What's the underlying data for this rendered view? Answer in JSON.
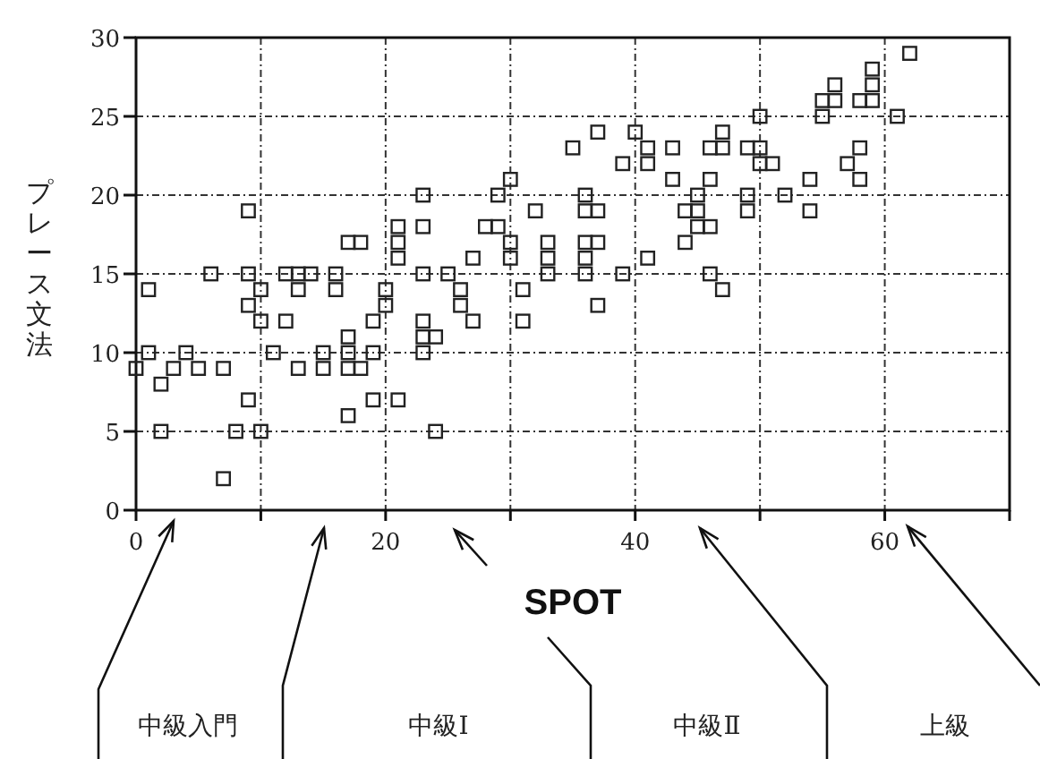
{
  "chart_data": {
    "type": "scatter",
    "xlabel": "SPOT",
    "ylabel": "プレース文法",
    "marker": "square",
    "grid": true,
    "xlim": [
      0,
      70
    ],
    "ylim": [
      0,
      30
    ],
    "xticks": [
      0,
      {
        "value": 10,
        "label": null
      },
      20,
      {
        "value": 30,
        "label": null
      },
      40,
      {
        "value": 50,
        "label": null
      },
      60,
      {
        "value": 70,
        "label": null
      }
    ],
    "yticks": [
      0,
      5,
      10,
      15,
      20,
      25,
      30
    ],
    "annotations": [
      "中級入門",
      "中級Ⅰ",
      "中級Ⅱ",
      "上級"
    ],
    "series": [
      {
        "color": "#222222",
        "x": [
          0,
          1,
          1,
          2,
          2,
          3,
          4,
          5,
          7,
          6,
          7,
          8,
          9,
          9,
          9,
          9,
          10,
          10,
          10,
          11,
          12,
          12,
          13,
          13,
          13,
          14,
          15,
          15,
          16,
          16,
          17,
          17,
          17,
          17,
          18,
          17,
          18,
          19,
          19,
          19,
          20,
          20,
          21,
          21,
          21,
          21,
          23,
          23,
          23,
          23,
          23,
          23,
          24,
          24,
          25,
          26,
          26,
          27,
          27,
          28,
          29,
          29,
          30,
          30,
          30,
          31,
          31,
          32,
          33,
          33,
          33,
          35,
          36,
          36,
          37,
          36,
          36,
          36,
          37,
          37,
          37,
          39,
          39,
          40,
          41,
          41,
          41,
          43,
          43,
          44,
          44,
          46,
          46,
          47,
          47,
          49,
          50,
          50,
          50,
          51,
          45,
          45,
          45,
          46,
          46,
          47,
          49,
          49,
          52,
          54,
          54,
          55,
          55,
          56,
          56,
          57,
          58,
          58,
          58,
          59,
          59,
          59,
          61,
          62
        ],
        "values": [
          9,
          14,
          10,
          8,
          5,
          9,
          10,
          9,
          9,
          15,
          2,
          5,
          19,
          15,
          13,
          7,
          5,
          14,
          12,
          10,
          12,
          15,
          15,
          14,
          9,
          15,
          10,
          9,
          15,
          14,
          11,
          10,
          9,
          17,
          17,
          6,
          9,
          12,
          10,
          7,
          14,
          13,
          7,
          18,
          17,
          16,
          20,
          18,
          15,
          12,
          11,
          10,
          11,
          5,
          15,
          14,
          13,
          12,
          16,
          18,
          20,
          18,
          21,
          17,
          16,
          14,
          12,
          19,
          17,
          16,
          15,
          23,
          20,
          19,
          19,
          17,
          16,
          15,
          17,
          13,
          24,
          22,
          15,
          24,
          23,
          22,
          16,
          23,
          21,
          19,
          17,
          21,
          23,
          24,
          23,
          23,
          23,
          25,
          22,
          22,
          20,
          19,
          18,
          18,
          15,
          14,
          20,
          19,
          20,
          21,
          19,
          26,
          25,
          27,
          26,
          22,
          23,
          21,
          26,
          26,
          28,
          27,
          25,
          29
        ]
      }
    ]
  }
}
